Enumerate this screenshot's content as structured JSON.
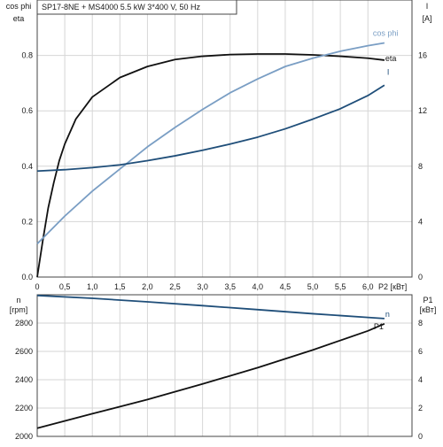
{
  "title": "SP17-8NE + MS4000   5.5 kW   3*400 V, 50 Hz",
  "top_chart": {
    "left_axis_label_1": "cos phi",
    "left_axis_label_2": "eta",
    "right_axis_label_1": "I",
    "right_axis_label_2": "[A]",
    "x_label": "P2 [кВт]"
  },
  "bottom_chart": {
    "left_axis_label_1": "n",
    "left_axis_label_2": "[rpm]",
    "right_axis_label_1": "P1",
    "right_axis_label_2": "[кВт]"
  },
  "chart_data": [
    {
      "type": "line",
      "title": "SP17-8NE + MS4000   5.5 kW   3*400 V, 50 Hz",
      "xlabel": "P2 [кВт]",
      "ylabel": "cos phi / eta",
      "y2label": "I [A]",
      "xlim": [
        0,
        6.8
      ],
      "ylim": [
        0,
        1.0
      ],
      "y2lim": [
        0,
        20
      ],
      "x_ticks": [
        0,
        0.5,
        1.0,
        1.5,
        2.0,
        2.5,
        3.0,
        3.5,
        4.0,
        4.5,
        5.0,
        5.5,
        6.0
      ],
      "x_tick_labels": [
        "0",
        "0,5",
        "1,0",
        "1,5",
        "2,0",
        "2,5",
        "3,0",
        "3,5",
        "4,0",
        "4,5",
        "5,0",
        "5,5",
        "6,0"
      ],
      "y_ticks": [
        0,
        0.2,
        0.4,
        0.6,
        0.8
      ],
      "y_tick_labels": [
        "0.0",
        "0.2",
        "0.4",
        "0.6",
        "0.8"
      ],
      "y2_ticks": [
        0,
        4,
        8,
        12,
        16
      ],
      "y2_tick_labels": [
        "0",
        "4",
        "8",
        "12",
        "16"
      ],
      "grid": true,
      "series": [
        {
          "name": "eta",
          "axis": "left",
          "color": "#111111",
          "x": [
            0,
            0.1,
            0.2,
            0.3,
            0.4,
            0.5,
            0.7,
            1.0,
            1.5,
            2.0,
            2.5,
            3.0,
            3.5,
            4.0,
            4.5,
            5.0,
            5.5,
            6.0,
            6.3
          ],
          "y": [
            0,
            0.13,
            0.25,
            0.34,
            0.42,
            0.48,
            0.57,
            0.65,
            0.72,
            0.76,
            0.785,
            0.797,
            0.803,
            0.805,
            0.805,
            0.802,
            0.797,
            0.79,
            0.783
          ]
        },
        {
          "name": "cos phi",
          "axis": "left",
          "color": "#7a9ec4",
          "x": [
            0,
            0.5,
            1.0,
            1.5,
            2.0,
            2.5,
            3.0,
            3.5,
            4.0,
            4.5,
            5.0,
            5.5,
            6.0,
            6.3
          ],
          "y": [
            0.12,
            0.22,
            0.31,
            0.39,
            0.47,
            0.54,
            0.605,
            0.665,
            0.715,
            0.76,
            0.79,
            0.815,
            0.835,
            0.845
          ]
        },
        {
          "name": "I",
          "axis": "right",
          "color": "#1f4e79",
          "x": [
            0,
            0.5,
            1.0,
            1.5,
            2.0,
            2.5,
            3.0,
            3.5,
            4.0,
            4.5,
            5.0,
            5.5,
            6.0,
            6.3
          ],
          "y": [
            7.65,
            7.75,
            7.9,
            8.1,
            8.4,
            8.75,
            9.15,
            9.6,
            10.1,
            10.7,
            11.4,
            12.15,
            13.1,
            13.85
          ]
        }
      ]
    },
    {
      "type": "line",
      "xlabel": "",
      "ylabel": "n [rpm]",
      "y2label": "P1 [кВт]",
      "xlim": [
        0,
        6.8
      ],
      "ylim": [
        2000,
        3000
      ],
      "y2lim": [
        0,
        10
      ],
      "y_ticks": [
        2000,
        2200,
        2400,
        2600,
        2800
      ],
      "y_tick_labels": [
        "2000",
        "2200",
        "2400",
        "2600",
        "2800"
      ],
      "y2_ticks": [
        0,
        2,
        4,
        6,
        8
      ],
      "y2_tick_labels": [
        "0",
        "2",
        "4",
        "6",
        "8"
      ],
      "grid": true,
      "series": [
        {
          "name": "n",
          "axis": "left",
          "color": "#1f4e79",
          "x": [
            0,
            1.0,
            2.0,
            3.0,
            4.0,
            5.0,
            6.0,
            6.3
          ],
          "y": [
            2995,
            2975,
            2950,
            2923,
            2895,
            2866,
            2840,
            2832
          ]
        },
        {
          "name": "P1",
          "axis": "right",
          "color": "#111111",
          "x": [
            0,
            1.0,
            2.0,
            3.0,
            4.0,
            5.0,
            6.0,
            6.3
          ],
          "y": [
            0.58,
            1.6,
            2.6,
            3.7,
            4.85,
            6.1,
            7.45,
            7.95
          ]
        }
      ]
    }
  ]
}
